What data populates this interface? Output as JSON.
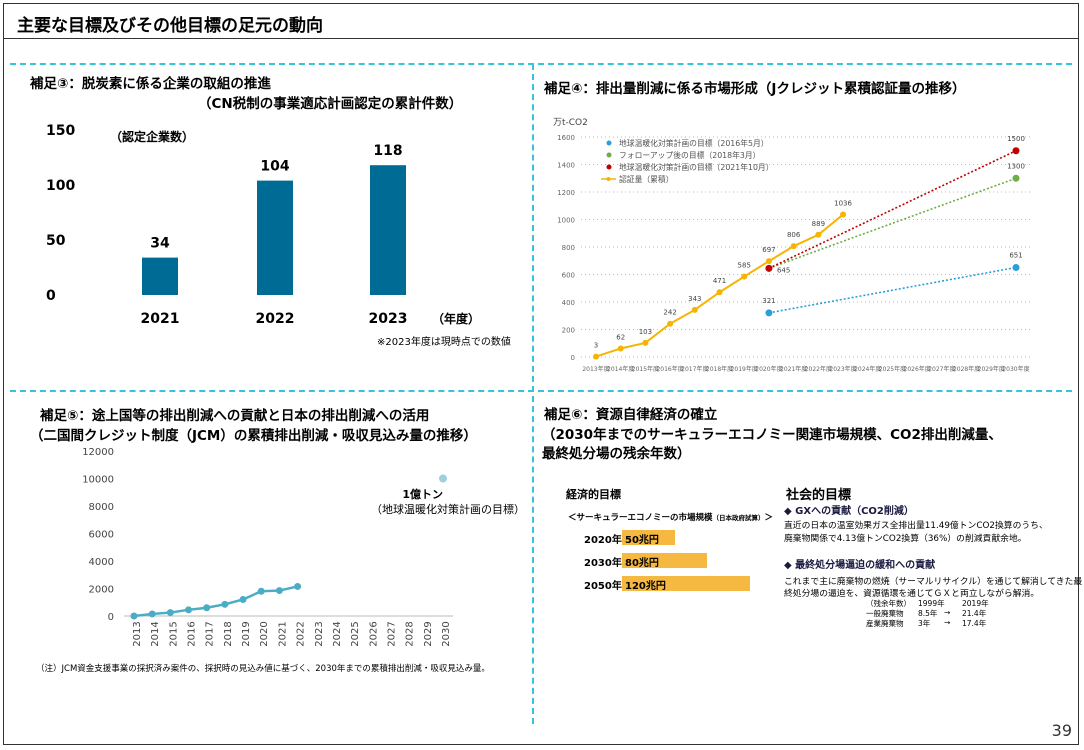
{
  "page": {
    "title": "主要な目標及びその他目標の足元の動向",
    "page_number": "39"
  },
  "panel3": {
    "title": "補足③：脱炭素に係る企業の取組の推進",
    "subtitle": "（CN税制の事業適応計画認定の累計件数）",
    "note": "※2023年度は現時点での数値"
  },
  "panel4": {
    "title": "補足④：排出量削減に係る市場形成（Jクレジット累積認証量の推移）"
  },
  "panel5": {
    "title": "補足⑤：途上国等の排出削減への貢献と日本の排出削減への活用",
    "subtitle": "（二国間クレジット制度（JCM）の累積排出削減・吸収見込み量の推移）",
    "target_label": "1億トン",
    "target_desc": "（地球温暖化対策計画の目標）",
    "footnote": "（注）JCM資金支援事業の採択済み案件の、採択時の見込み値に基づく、2030年までの累積排出削減・吸収見込み量。"
  },
  "panel6": {
    "title": "補足⑥：資源自律経済の確立",
    "subtitle1": "（2030年までのサーキュラーエコノミー関連市場規模、CO2排出削減量、",
    "subtitle2": "最終処分場の残余年数）",
    "econ_heading": "経済的目標",
    "market_label": "＜サーキュラーエコノミーの市場規模",
    "market_label_small": "（日本政府試算）",
    "market_label_end": "＞",
    "market_rows": [
      {
        "year": "2020年",
        "value": "50兆円",
        "num": 50
      },
      {
        "year": "2030年",
        "value": "80兆円",
        "num": 80
      },
      {
        "year": "2050年",
        "value": "120兆円",
        "num": 120
      }
    ],
    "social_heading": "社会的目標",
    "gx_heading": "◆ GXへの貢献（CO2削減）",
    "gx_text1": "直近の日本の温室効果ガス全排出量11.49億トンCO2換算のうち、",
    "gx_text2": "廃棄物関係で4.13億トンCO2換算（36%）の削減貢献余地。",
    "landfill_heading": "◆ 最終処分場逼迫の緩和への貢献",
    "landfill_text1": "これまで主に廃棄物の燃焼（サーマルリサイクル）を通じて解消してきた最",
    "landfill_text2": "終処分場の逼迫を、資源循環を通じてＧＸと両立しながら解消。",
    "table": {
      "header": [
        "（残余年数）",
        "1999年",
        "",
        "2019年"
      ],
      "rows": [
        [
          "一般廃棄物",
          "8.5年",
          "→",
          "21.4年"
        ],
        [
          "産業廃棄物",
          "3年",
          "→",
          "17.4年"
        ]
      ]
    }
  },
  "colors": {
    "bar": "#006c96",
    "jcredit": "#f5b400",
    "jcm": "#4bacc6",
    "dash": "#35c4dc",
    "market_bar": "#f5b942"
  },
  "chart_data": [
    {
      "type": "bar",
      "categories": [
        "2021",
        "2022",
        "2023"
      ],
      "values": [
        34,
        104,
        118
      ],
      "ylabel": "（認定企業数）",
      "xlabel": "（年度）",
      "yticks": [
        0,
        50,
        100,
        150
      ],
      "ylim": [
        0,
        150
      ]
    },
    {
      "type": "line",
      "ylabel": "万t-CO2",
      "yticks": [
        0,
        200,
        400,
        600,
        800,
        1000,
        1200,
        1400,
        1600
      ],
      "ylim": [
        0,
        1600
      ],
      "categories": [
        "2013年度",
        "2014年度",
        "2015年度",
        "2016年度",
        "2017年度",
        "2018年度",
        "2019年度",
        "2020年度",
        "2021年度",
        "2022年度",
        "2023年度",
        "2024年度",
        "2025年度",
        "2026年度",
        "2027年度",
        "2028年度",
        "2029年度",
        "2030年度"
      ],
      "legend": [
        "地球温暖化対策計画の目標（2016年5月）",
        "フォローアップ後の目標（2018年3月）",
        "地球温暖化対策計画の目標（2021年10月）",
        "認証量（累積）"
      ],
      "series": [
        {
          "name": "認証量（累積）",
          "x": [
            2013,
            2014,
            2015,
            2016,
            2017,
            2018,
            2019,
            2020,
            2021,
            2022,
            2023
          ],
          "values": [
            3,
            62,
            103,
            242,
            343,
            471,
            585,
            697,
            806,
            889,
            1036
          ],
          "labels": [
            "3",
            "62",
            "103",
            "242",
            "343",
            "471",
            "585",
            "697",
            "806",
            "889",
            "1036"
          ]
        },
        {
          "name": "地球温暖化対策計画の目標（2016年5月）",
          "x": [
            2020,
            2030
          ],
          "values": [
            321,
            651
          ],
          "labels": [
            "321",
            "651"
          ]
        },
        {
          "name": "フォローアップ後の目標（2018年3月）",
          "x": [
            2020,
            2030
          ],
          "values": [
            645,
            1300
          ],
          "labels": [
            "645",
            "1300"
          ]
        },
        {
          "name": "地球温暖化対策計画の目標（2021年10月）",
          "x": [
            2020,
            2030
          ],
          "values": [
            645,
            1500
          ],
          "labels": [
            "",
            "1500"
          ]
        }
      ]
    },
    {
      "type": "line",
      "categories": [
        "2013",
        "2014",
        "2015",
        "2016",
        "2017",
        "2018",
        "2019",
        "2020",
        "2021",
        "2022",
        "2023",
        "2024",
        "2025",
        "2026",
        "2027",
        "2028",
        "2029",
        "2030"
      ],
      "yticks": [
        0,
        2000,
        4000,
        6000,
        8000,
        10000,
        12000
      ],
      "ylim": [
        0,
        12000
      ],
      "series": [
        {
          "x": [
            2013,
            2014,
            2015,
            2016,
            2017,
            2018,
            2019,
            2020,
            2021,
            2022
          ],
          "values": [
            0,
            150,
            250,
            450,
            600,
            850,
            1200,
            1800,
            1850,
            2150
          ]
        },
        {
          "x": [
            2030
          ],
          "values": [
            10000
          ]
        }
      ]
    }
  ]
}
